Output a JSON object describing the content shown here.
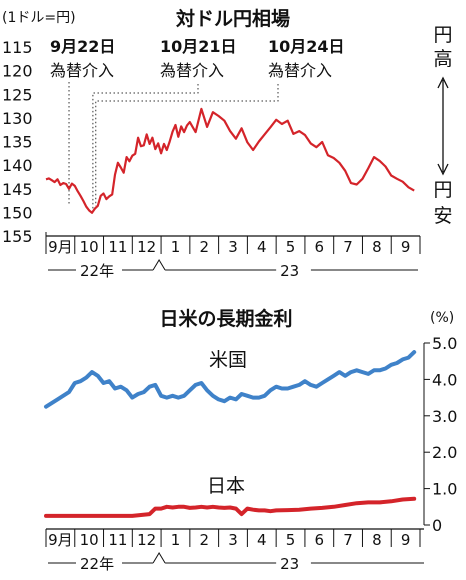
{
  "chart_data": [
    {
      "type": "line",
      "title": "対ドル円相場",
      "unit_label": "(1ドル=円)",
      "ylim": [
        115,
        155
      ],
      "y_ticks": [
        "115",
        "120",
        "125",
        "130",
        "135",
        "140",
        "145",
        "150",
        "155"
      ],
      "y_inverted": true,
      "right_axis": {
        "top_label": "円高",
        "bottom_label": "円安",
        "top_arrow": "↑",
        "bottom_arrow": "↓"
      },
      "months": [
        "9月",
        "10",
        "11",
        "12",
        "1",
        "2",
        "3",
        "4",
        "5",
        "6",
        "7",
        "8",
        "9"
      ],
      "years": [
        "22年",
        "23"
      ],
      "annotations": [
        {
          "date": "9月22日",
          "text": "為替介入",
          "x": 0.8
        },
        {
          "date": "10月21日",
          "text": "為替介入",
          "x": 1.63
        },
        {
          "date": "10月24日",
          "text": "為替介入",
          "x": 1.73
        }
      ],
      "series": [
        {
          "color": "#d4242a",
          "x": [
            0.0,
            0.1,
            0.2,
            0.3,
            0.4,
            0.5,
            0.6,
            0.7,
            0.8,
            0.9,
            1.0,
            1.1,
            1.2,
            1.3,
            1.4,
            1.5,
            1.6,
            1.7,
            1.8,
            1.9,
            2.0,
            2.1,
            2.2,
            2.3,
            2.4,
            2.5,
            2.6,
            2.7,
            2.8,
            2.9,
            3.0,
            3.1,
            3.2,
            3.3,
            3.4,
            3.5,
            3.6,
            3.7,
            3.8,
            3.9,
            4.0,
            4.1,
            4.2,
            4.3,
            4.4,
            4.5,
            4.6,
            4.7,
            4.8,
            4.9,
            5.0,
            5.2,
            5.4,
            5.6,
            5.8,
            6.0,
            6.2,
            6.4,
            6.6,
            6.8,
            7.0,
            7.2,
            7.4,
            7.6,
            7.8,
            8.0,
            8.2,
            8.4,
            8.6,
            8.8,
            9.0,
            9.2,
            9.4,
            9.6,
            9.8,
            10.0,
            10.2,
            10.4,
            10.6,
            10.8,
            11.0,
            11.2,
            11.4,
            11.6,
            11.8,
            12.0,
            12.2,
            12.4,
            12.6,
            12.8
          ],
          "values": [
            143.0,
            142.8,
            143.2,
            143.6,
            143.0,
            144.2,
            143.8,
            144.0,
            145.0,
            143.9,
            144.4,
            145.5,
            146.5,
            147.6,
            148.8,
            149.6,
            150.1,
            149.2,
            148.6,
            146.5,
            146.0,
            147.2,
            146.6,
            146.2,
            142.0,
            139.5,
            140.5,
            141.6,
            138.3,
            139.2,
            138.0,
            137.6,
            134.2,
            136.0,
            135.8,
            133.5,
            135.5,
            134.2,
            136.6,
            135.4,
            137.5,
            135.5,
            136.8,
            135.0,
            132.9,
            131.5,
            134.0,
            131.8,
            133.0,
            131.6,
            130.9,
            133.0,
            128.1,
            131.9,
            128.8,
            129.6,
            130.6,
            132.8,
            134.4,
            132.2,
            135.2,
            136.8,
            135.0,
            133.5,
            132.0,
            130.4,
            131.3,
            130.6,
            133.4,
            132.8,
            133.6,
            135.4,
            136.2,
            135.1,
            137.9,
            138.5,
            139.5,
            141.2,
            143.8,
            144.1,
            142.9,
            140.7,
            138.3,
            139.1,
            140.3,
            142.2,
            142.9,
            143.5,
            144.7,
            145.4
          ]
        }
      ]
    },
    {
      "type": "line",
      "title": "日米の長期金利",
      "unit_label": "(%)",
      "ylim": [
        0,
        5
      ],
      "y_ticks": [
        "0",
        "1.0",
        "2.0",
        "3.0",
        "4.0",
        "5.0"
      ],
      "months": [
        "9月",
        "10",
        "11",
        "12",
        "1",
        "2",
        "3",
        "4",
        "5",
        "6",
        "7",
        "8",
        "9"
      ],
      "years": [
        "22年",
        "23"
      ],
      "series": [
        {
          "name": "米国",
          "color": "#3f82c9",
          "x": [
            0.0,
            0.4,
            0.8,
            1.0,
            1.2,
            1.4,
            1.6,
            1.8,
            2.0,
            2.2,
            2.4,
            2.6,
            2.8,
            3.0,
            3.2,
            3.4,
            3.6,
            3.8,
            4.0,
            4.2,
            4.4,
            4.6,
            4.8,
            5.0,
            5.2,
            5.4,
            5.6,
            5.8,
            6.0,
            6.2,
            6.4,
            6.6,
            6.8,
            7.0,
            7.2,
            7.4,
            7.6,
            7.8,
            8.0,
            8.2,
            8.4,
            8.6,
            8.8,
            9.0,
            9.2,
            9.4,
            9.6,
            9.8,
            10.0,
            10.2,
            10.4,
            10.6,
            10.8,
            11.0,
            11.2,
            11.4,
            11.6,
            11.8,
            12.0,
            12.2,
            12.4,
            12.6,
            12.8
          ],
          "values": [
            3.25,
            3.45,
            3.65,
            3.9,
            3.95,
            4.05,
            4.2,
            4.1,
            3.9,
            3.95,
            3.75,
            3.8,
            3.7,
            3.5,
            3.6,
            3.65,
            3.8,
            3.85,
            3.55,
            3.5,
            3.55,
            3.5,
            3.55,
            3.7,
            3.85,
            3.9,
            3.7,
            3.55,
            3.45,
            3.4,
            3.5,
            3.45,
            3.6,
            3.55,
            3.5,
            3.5,
            3.55,
            3.7,
            3.8,
            3.75,
            3.75,
            3.8,
            3.85,
            3.95,
            3.85,
            3.8,
            3.9,
            4.0,
            4.1,
            4.2,
            4.1,
            4.2,
            4.25,
            4.2,
            4.15,
            4.25,
            4.25,
            4.3,
            4.4,
            4.45,
            4.55,
            4.6,
            4.75
          ]
        },
        {
          "name": "日本",
          "color": "#d4242a",
          "x": [
            0.0,
            1.0,
            2.0,
            3.0,
            3.6,
            3.8,
            4.0,
            4.2,
            4.4,
            4.6,
            4.8,
            5.0,
            5.2,
            5.4,
            5.6,
            5.8,
            6.0,
            6.2,
            6.4,
            6.6,
            6.8,
            7.0,
            7.2,
            7.4,
            7.6,
            7.8,
            8.0,
            8.4,
            8.8,
            9.2,
            9.6,
            10.0,
            10.4,
            10.8,
            11.2,
            11.6,
            12.0,
            12.4,
            12.8
          ],
          "values": [
            0.25,
            0.25,
            0.25,
            0.25,
            0.3,
            0.45,
            0.45,
            0.5,
            0.48,
            0.5,
            0.5,
            0.47,
            0.48,
            0.5,
            0.48,
            0.5,
            0.48,
            0.47,
            0.48,
            0.45,
            0.3,
            0.45,
            0.42,
            0.4,
            0.4,
            0.38,
            0.4,
            0.41,
            0.42,
            0.45,
            0.47,
            0.5,
            0.55,
            0.6,
            0.62,
            0.62,
            0.65,
            0.7,
            0.72
          ]
        }
      ]
    }
  ]
}
